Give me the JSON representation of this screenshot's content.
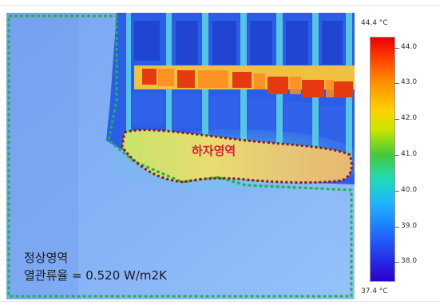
{
  "image": {
    "defect_label": "하자영역",
    "normal_label": "정상영역",
    "heat_transmittance_text": "열관류율 = 0.520 W/m2K"
  },
  "scale": {
    "max_label": "44.4 °C",
    "min_label": "37.4 °C",
    "ticks": [
      "44.0",
      "43.0",
      "42.0",
      "41.0",
      "40.0",
      "39.0",
      "38.0"
    ]
  },
  "colors": {
    "outline_green": "#22b14c",
    "outline_red": "#8b1a1a",
    "defect_text": "#d3223a"
  }
}
